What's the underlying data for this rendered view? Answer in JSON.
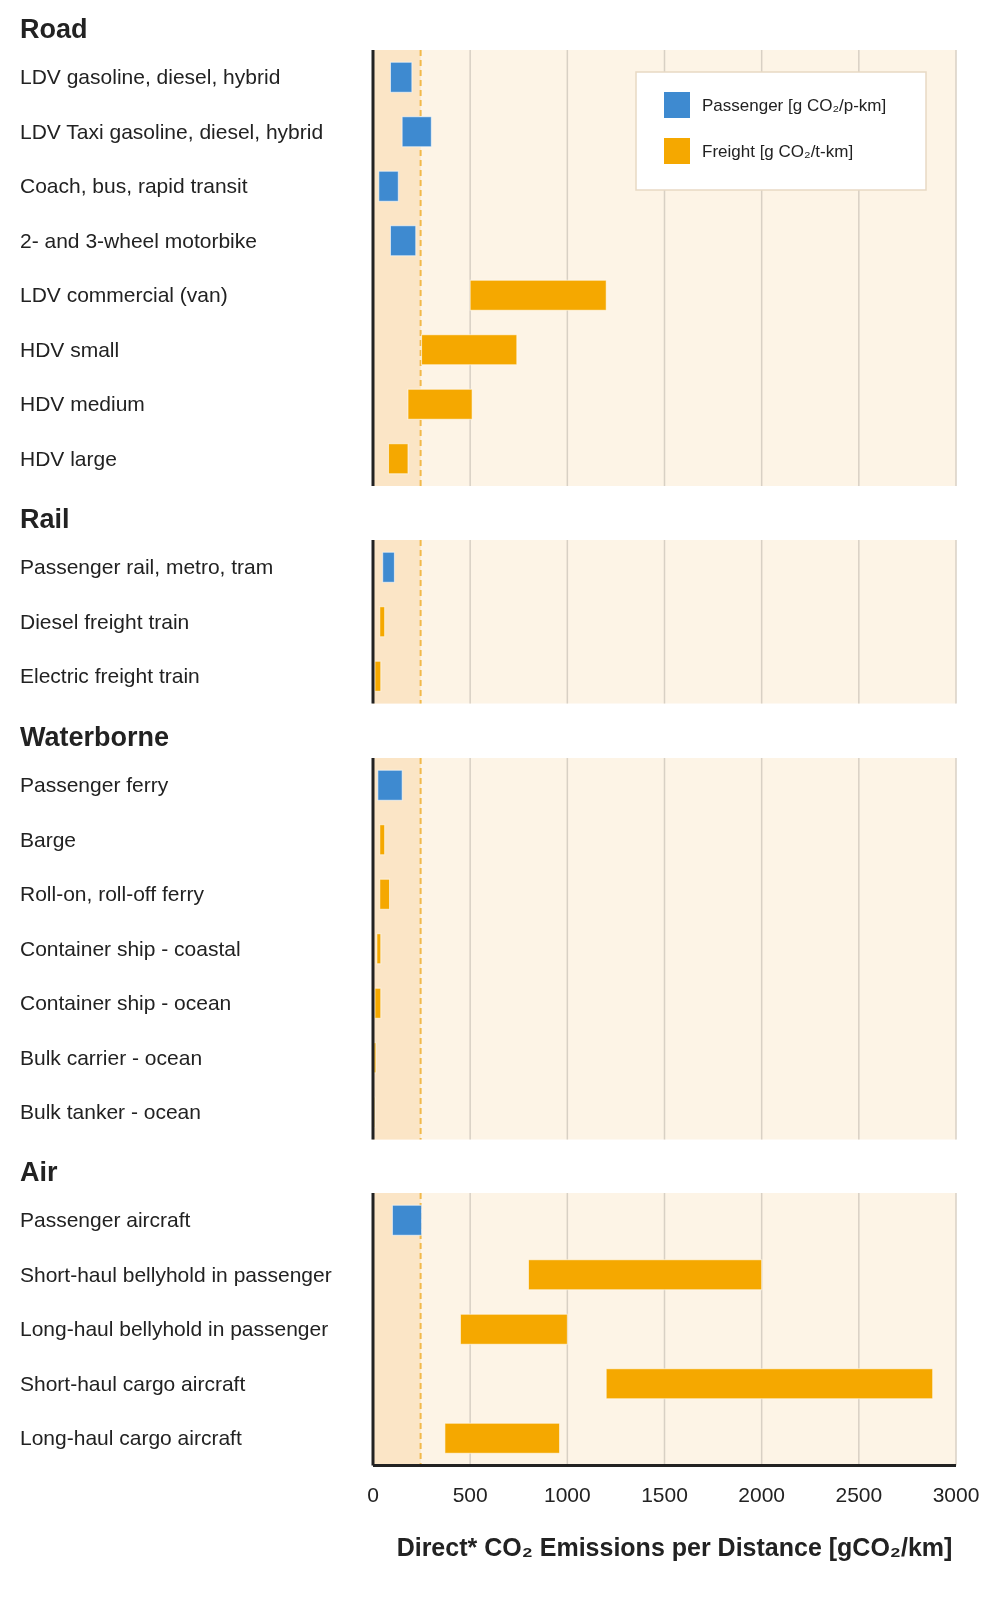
{
  "chart_data": [
    {
      "type": "bar",
      "orientation": "horizontal",
      "title": "Road",
      "categories": [
        "LDV gasoline, diesel, hybrid",
        "LDV Taxi gasoline, diesel, hybrid",
        "Coach, bus, rapid transit",
        "2- and 3-wheel motorbike",
        "LDV commercial (van)",
        "HDV small",
        "HDV medium",
        "HDV large"
      ],
      "series": [
        {
          "name": "Passenger [g CO₂/p-km]",
          "color": "#3e8ad0",
          "base": [
            90,
            150,
            30,
            90,
            null,
            null,
            null,
            null
          ],
          "values": [
            110,
            150,
            100,
            130,
            null,
            null,
            null,
            null
          ]
        },
        {
          "name": "Freight [g CO₂/t-km]",
          "color": "#f5a800",
          "base": [
            null,
            null,
            null,
            null,
            500,
            250,
            180,
            80
          ],
          "values": [
            null,
            null,
            null,
            null,
            700,
            490,
            330,
            100
          ]
        }
      ],
      "xlim": [
        0,
        3000
      ],
      "xticks": [
        0,
        500,
        1000,
        1500,
        2000,
        2500,
        3000
      ],
      "grid": "x",
      "legend": "top right",
      "tick_labels": "y",
      "ref_lines": [
        {
          "axis": "x",
          "value": 245,
          "label": null,
          "color": "#f2b94a",
          "line_style": "dashed"
        }
      ],
      "bands": [
        {
          "axis": "x",
          "from": 0,
          "to": 245,
          "label": null,
          "color": "#fbe5c6"
        }
      ]
    },
    {
      "type": "bar",
      "orientation": "horizontal",
      "title": "Rail",
      "categories": [
        "Passenger rail, metro, tram",
        "Diesel freight train",
        "Electric freight train"
      ],
      "series": [
        {
          "color": "#3e8ad0",
          "base": [
            50,
            null,
            null
          ],
          "values": [
            60,
            null,
            null
          ]
        },
        {
          "color": "#f5a800",
          "base": [
            null,
            35,
            10
          ],
          "values": [
            null,
            25,
            30
          ]
        }
      ],
      "xlim": [
        0,
        3000
      ],
      "xticks": [
        0,
        500,
        1000,
        1500,
        2000,
        2500,
        3000
      ],
      "grid": "x",
      "tick_labels": "y",
      "ref_lines": [
        {
          "axis": "x",
          "value": 245,
          "label": null,
          "color": "#f2b94a",
          "line_style": "dashed"
        }
      ],
      "bands": [
        {
          "axis": "x",
          "from": 0,
          "to": 245,
          "label": null,
          "color": "#fbe5c6"
        }
      ]
    },
    {
      "type": "bar",
      "orientation": "horizontal",
      "title": "Waterborne",
      "categories": [
        "Passenger ferry",
        "Barge",
        "Roll-on, roll-off ferry",
        "Container ship  - coastal",
        "Container ship - ocean",
        "Bulk carrier - ocean",
        "Bulk tanker - ocean"
      ],
      "series": [
        {
          "color": "#3e8ad0",
          "base": [
            25,
            null,
            null,
            null,
            null,
            null,
            null
          ],
          "values": [
            125,
            null,
            null,
            null,
            null,
            null,
            null
          ]
        },
        {
          "color": "#f5a800",
          "base": [
            null,
            35,
            35,
            20,
            10,
            5,
            5
          ],
          "values": [
            null,
            25,
            50,
            20,
            30,
            10,
            5
          ]
        }
      ],
      "xlim": [
        0,
        3000
      ],
      "xticks": [
        0,
        500,
        1000,
        1500,
        2000,
        2500,
        3000
      ],
      "grid": "x",
      "tick_labels": "y",
      "ref_lines": [
        {
          "axis": "x",
          "value": 245,
          "label": null,
          "color": "#f2b94a",
          "line_style": "dashed"
        }
      ],
      "bands": [
        {
          "axis": "x",
          "from": 0,
          "to": 245,
          "label": null,
          "color": "#fbe5c6"
        }
      ]
    },
    {
      "type": "bar",
      "orientation": "horizontal",
      "title": "Air",
      "xlabel": "Direct* CO₂ Emissions per Distance [gCO₂/km]",
      "categories": [
        "Passenger aircraft",
        "Short-haul bellyhold in passenger",
        "Long-haul bellyhold in passenger",
        "Short-haul cargo aircraft",
        "Long-haul cargo aircraft"
      ],
      "series": [
        {
          "color": "#3e8ad0",
          "base": [
            100,
            null,
            null,
            null,
            null
          ],
          "values": [
            150,
            null,
            null,
            null,
            null
          ]
        },
        {
          "color": "#f5a800",
          "base": [
            null,
            800,
            450,
            1200,
            370
          ],
          "values": [
            null,
            1200,
            550,
            1680,
            590
          ]
        }
      ],
      "xlim": [
        0,
        3000
      ],
      "xticks": [
        0,
        500,
        1000,
        1500,
        2000,
        2500,
        3000
      ],
      "grid": "x",
      "ref_lines": [
        {
          "axis": "x",
          "value": 245,
          "label": null,
          "color": "#f2b94a",
          "line_style": "dashed"
        }
      ],
      "bands": [
        {
          "axis": "x",
          "from": 0,
          "to": 245,
          "label": null,
          "color": "#fbe5c6"
        }
      ]
    }
  ]
}
